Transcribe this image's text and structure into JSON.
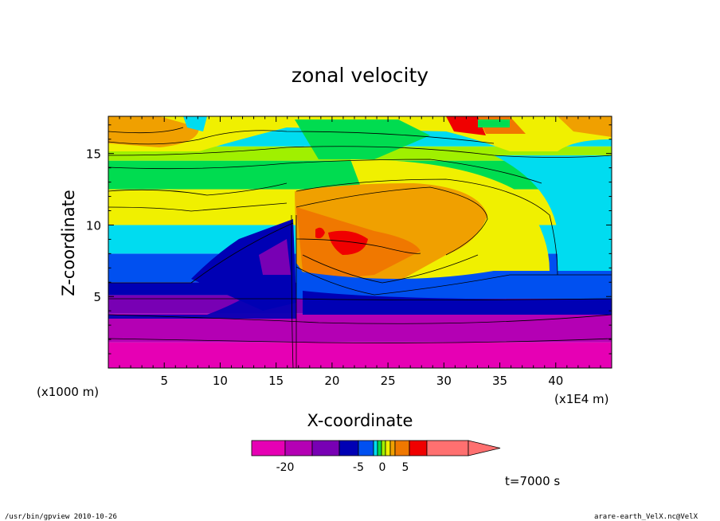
{
  "chart_data": {
    "type": "heatmap",
    "title": "zonal velocity",
    "xlabel": "X-coordinate",
    "ylabel": "Z-coordinate",
    "x_unit_left": "(x1000 m)",
    "x_unit_right": "(x1E4 m)",
    "xlim": [
      0,
      45
    ],
    "ylim": [
      0,
      17.6
    ],
    "x_ticks": [
      "5",
      "10",
      "15",
      "20",
      "25",
      "30",
      "35",
      "40"
    ],
    "y_ticks": [
      "5",
      "10",
      "15"
    ],
    "time_label": "t=7000 s",
    "colorbar": {
      "tick_labels": [
        "-20",
        "-5",
        "0",
        "5"
      ],
      "colors": [
        "#e600b4",
        "#b400b4",
        "#7800b4",
        "#0000b4",
        "#0050f0",
        "#00dcf0",
        "#00dc50",
        "#a0f000",
        "#f0f000",
        "#f0a000",
        "#f07800",
        "#f00000",
        "#ff7070"
      ]
    },
    "bands": [
      {
        "z_top": 1.8,
        "color": "#e600b4"
      },
      {
        "z_top": 3.8,
        "color": "#b400b4"
      },
      {
        "z_top": 5.1,
        "color": "#7800b4"
      },
      {
        "z_top": 6.0,
        "color": "#0000b4"
      },
      {
        "z_top": 8.0,
        "color": "#0050f0"
      },
      {
        "z_top": 10.0,
        "color": "#00dcf0"
      },
      {
        "z_top": 12.5,
        "color": "#f0f000"
      },
      {
        "z_top": 14.5,
        "color": "#00dc50"
      },
      {
        "z_top": 15.5,
        "color": "#a0f000"
      },
      {
        "z_top": 17.6,
        "color": "#00dcf0"
      }
    ]
  },
  "footer": {
    "left": "/usr/bin/gpview   2010-10-26",
    "right": "arare-earth_VelX.nc@VelX"
  }
}
